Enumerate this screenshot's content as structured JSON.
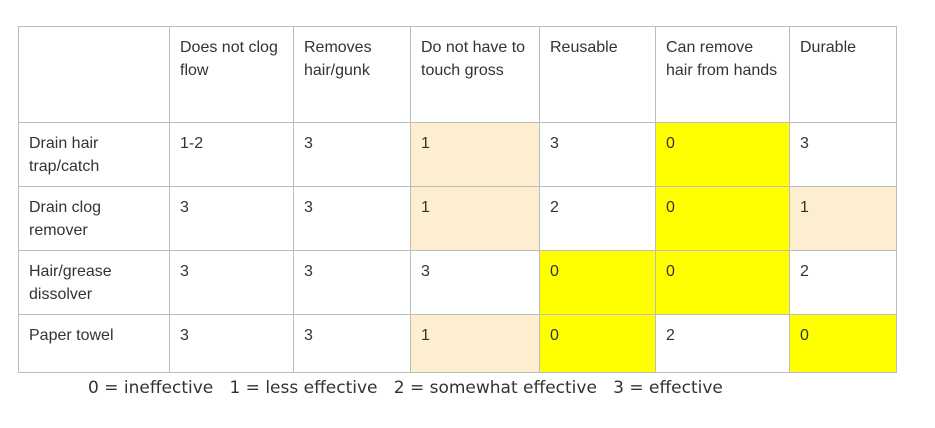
{
  "colors": {
    "yellow": "#ffff00",
    "light_orange": "#fdeecf",
    "white": "#ffffff",
    "border": "#bdbdbd"
  },
  "table": {
    "columns": [
      "",
      "Does not clog flow",
      "Removes hair/gunk",
      "Do not have to touch gross",
      "Reusable",
      "Can remove hair from hands",
      "Durable"
    ],
    "rows": [
      {
        "label": "Drain hair trap/catch",
        "cells": [
          {
            "value": "1-2",
            "fill": "white"
          },
          {
            "value": "3",
            "fill": "white"
          },
          {
            "value": "1",
            "fill": "light_orange"
          },
          {
            "value": "3",
            "fill": "white"
          },
          {
            "value": "0",
            "fill": "yellow"
          },
          {
            "value": "3",
            "fill": "white"
          }
        ]
      },
      {
        "label": "Drain clog remover",
        "cells": [
          {
            "value": "3",
            "fill": "white"
          },
          {
            "value": "3",
            "fill": "white"
          },
          {
            "value": "1",
            "fill": "light_orange"
          },
          {
            "value": "2",
            "fill": "white"
          },
          {
            "value": "0",
            "fill": "yellow"
          },
          {
            "value": "1",
            "fill": "light_orange"
          }
        ]
      },
      {
        "label": "Hair/grease dissolver",
        "cells": [
          {
            "value": "3",
            "fill": "white"
          },
          {
            "value": "3",
            "fill": "white"
          },
          {
            "value": "3",
            "fill": "white"
          },
          {
            "value": "0",
            "fill": "yellow"
          },
          {
            "value": "0",
            "fill": "yellow"
          },
          {
            "value": "2",
            "fill": "white"
          }
        ]
      },
      {
        "label": "Paper towel",
        "cells": [
          {
            "value": "3",
            "fill": "white"
          },
          {
            "value": "3",
            "fill": "white"
          },
          {
            "value": "1",
            "fill": "light_orange"
          },
          {
            "value": "0",
            "fill": "yellow"
          },
          {
            "value": "2",
            "fill": "white"
          },
          {
            "value": "0",
            "fill": "yellow"
          }
        ]
      }
    ]
  },
  "legend": {
    "text": "0 = ineffective   1 = less effective   2 = somewhat effective   3 = effective"
  }
}
